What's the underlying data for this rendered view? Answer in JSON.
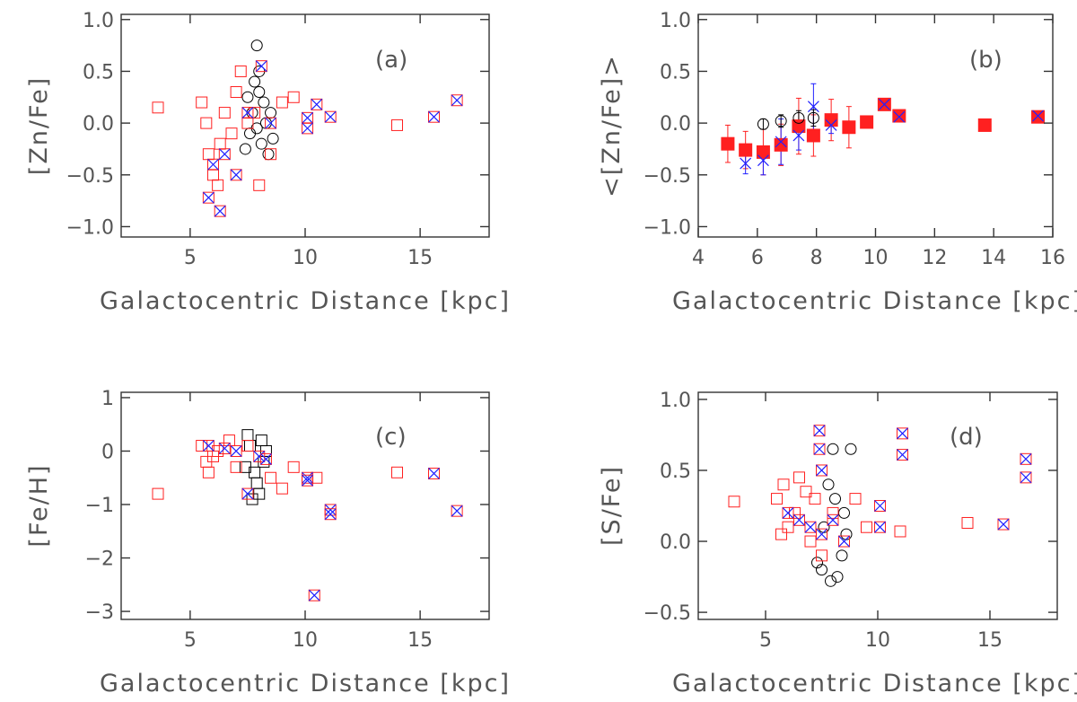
{
  "figure": "Zn/Fe, Fe/H and S/Fe versus galactocentric distance",
  "colors": {
    "red": "#ff2020",
    "blue": "#2020ff",
    "black": "#000000",
    "axis": "#333333",
    "text": "#555555"
  },
  "chart_data": [
    {
      "id": "a",
      "type": "scatter",
      "panel_label": "(a)",
      "xlabel": "Galactocentric Distance [kpc]",
      "ylabel": "[Zn/Fe]",
      "xlim": [
        2,
        18
      ],
      "ylim": [
        -1.1,
        1.05
      ],
      "xticks": [
        5,
        10,
        15
      ],
      "xtick_labels": [
        "5",
        "10",
        "15"
      ],
      "yticks": [
        -1.0,
        -0.5,
        0.0,
        0.5,
        1.0
      ],
      "ytick_labels": [
        "−1.0",
        "−0.5",
        "0.0",
        "0.5",
        "1.0"
      ],
      "series": [
        {
          "name": "black circles",
          "marker": "circle",
          "color": "#000000",
          "points": [
            [
              7.9,
              0.75
            ],
            [
              7.8,
              0.4
            ],
            [
              8.0,
              0.3
            ],
            [
              8.2,
              0.2
            ],
            [
              7.7,
              0.1
            ],
            [
              8.3,
              0.0
            ],
            [
              7.6,
              -0.1
            ],
            [
              8.1,
              -0.2
            ],
            [
              8.4,
              -0.3
            ],
            [
              7.9,
              -0.05
            ],
            [
              8.5,
              0.1
            ],
            [
              7.5,
              0.25
            ],
            [
              8.6,
              -0.15
            ],
            [
              7.4,
              -0.25
            ],
            [
              8.0,
              0.5
            ]
          ]
        },
        {
          "name": "red squares",
          "marker": "square",
          "color": "#ff2020",
          "points": [
            [
              3.6,
              0.15
            ],
            [
              5.5,
              0.2
            ],
            [
              5.8,
              -0.3
            ],
            [
              6.0,
              -0.5
            ],
            [
              6.3,
              -0.2
            ],
            [
              6.5,
              0.1
            ],
            [
              7.0,
              0.3
            ],
            [
              7.2,
              0.5
            ],
            [
              7.5,
              0.0
            ],
            [
              8.0,
              -0.6
            ],
            [
              8.5,
              -0.3
            ],
            [
              9.0,
              0.2
            ],
            [
              9.5,
              0.25
            ],
            [
              14.0,
              -0.02
            ],
            [
              6.8,
              -0.1
            ],
            [
              5.7,
              0.0
            ],
            [
              6.2,
              -0.6
            ],
            [
              7.8,
              0.1
            ]
          ]
        },
        {
          "name": "blue crosses in squares",
          "marker": "crossbox",
          "color": "#2020ff",
          "points": [
            [
              5.8,
              -0.72
            ],
            [
              6.3,
              -0.85
            ],
            [
              6.0,
              -0.4
            ],
            [
              6.5,
              -0.3
            ],
            [
              7.0,
              -0.5
            ],
            [
              8.1,
              0.55
            ],
            [
              10.1,
              0.05
            ],
            [
              10.1,
              -0.05
            ],
            [
              10.5,
              0.18
            ],
            [
              11.1,
              0.06
            ],
            [
              15.6,
              0.06
            ],
            [
              16.6,
              0.22
            ],
            [
              8.5,
              0.0
            ],
            [
              7.5,
              0.1
            ]
          ]
        }
      ]
    },
    {
      "id": "b",
      "type": "scatter",
      "panel_label": "(b)",
      "xlabel": "Galactocentric Distance [kpc]",
      "ylabel": "<[Zn/Fe]>",
      "xlim": [
        4,
        16
      ],
      "ylim": [
        -1.1,
        1.05
      ],
      "xticks": [
        4,
        6,
        8,
        10,
        12,
        14,
        16
      ],
      "xtick_labels": [
        "4",
        "6",
        "8",
        "10",
        "12",
        "14",
        "16"
      ],
      "yticks": [
        -1.0,
        -0.5,
        0.0,
        0.5,
        1.0
      ],
      "ytick_labels": [
        "−1.0",
        "−0.5",
        "0.0",
        "0.5",
        "1.0"
      ],
      "series": [
        {
          "name": "mean red filled squares",
          "marker": "filled-square",
          "color": "#ff2020",
          "points": [
            [
              5.0,
              -0.2,
              0.18
            ],
            [
              5.6,
              -0.26,
              0.18
            ],
            [
              6.2,
              -0.28,
              0.22
            ],
            [
              6.8,
              -0.21,
              0.2
            ],
            [
              7.4,
              -0.03,
              0.27
            ],
            [
              7.9,
              -0.12,
              0.2
            ],
            [
              8.5,
              0.03,
              0.2
            ],
            [
              9.1,
              -0.04,
              0.2
            ],
            [
              9.7,
              0.01,
              0
            ],
            [
              10.3,
              0.18,
              0
            ],
            [
              10.8,
              0.07,
              0
            ],
            [
              13.7,
              -0.02,
              0
            ],
            [
              15.5,
              0.06,
              0
            ]
          ]
        },
        {
          "name": "mean blue crosses",
          "marker": "x",
          "color": "#2020ff",
          "points": [
            [
              5.6,
              -0.39,
              0.1
            ],
            [
              6.2,
              -0.36,
              0.14
            ],
            [
              6.8,
              -0.18,
              0.22
            ],
            [
              7.4,
              -0.12,
              0.14
            ],
            [
              7.9,
              0.16,
              0.22
            ],
            [
              8.5,
              -0.02,
              0.08
            ],
            [
              10.3,
              0.18,
              0
            ],
            [
              10.8,
              0.06,
              0
            ],
            [
              15.5,
              0.07,
              0
            ]
          ]
        },
        {
          "name": "mean black circles",
          "marker": "circle",
          "color": "#000000",
          "points": [
            [
              6.2,
              -0.01,
              0.05
            ],
            [
              6.8,
              0.02,
              0.06
            ],
            [
              7.4,
              0.05,
              0.07
            ],
            [
              7.9,
              0.05,
              0.08
            ]
          ]
        }
      ]
    },
    {
      "id": "c",
      "type": "scatter",
      "panel_label": "(c)",
      "xlabel": "Galactocentric Distance [kpc]",
      "ylabel": "[Fe/H]",
      "xlim": [
        2,
        18
      ],
      "ylim": [
        -3.15,
        1.1
      ],
      "xticks": [
        5,
        10,
        15
      ],
      "xtick_labels": [
        "5",
        "10",
        "15"
      ],
      "yticks": [
        -3,
        -2,
        -1,
        0,
        1
      ],
      "ytick_labels": [
        "−3",
        "−2",
        "−1",
        "0",
        "1"
      ],
      "series": [
        {
          "name": "black squares",
          "marker": "square",
          "color": "#000000",
          "points": [
            [
              7.5,
              0.3
            ],
            [
              7.8,
              -0.4
            ],
            [
              8.0,
              -0.8
            ],
            [
              7.6,
              0.1
            ],
            [
              8.1,
              0.2
            ],
            [
              7.9,
              -0.6
            ],
            [
              8.2,
              -0.2
            ],
            [
              7.7,
              -0.9
            ],
            [
              8.3,
              0.0
            ],
            [
              7.4,
              -0.3
            ]
          ]
        },
        {
          "name": "red squares",
          "marker": "square",
          "color": "#ff2020",
          "points": [
            [
              3.6,
              -0.8
            ],
            [
              5.5,
              0.1
            ],
            [
              5.8,
              -0.4
            ],
            [
              6.2,
              0.0
            ],
            [
              6.7,
              0.2
            ],
            [
              7.0,
              -0.3
            ],
            [
              7.5,
              0.1
            ],
            [
              8.5,
              -0.5
            ],
            [
              9.0,
              -0.7
            ],
            [
              9.5,
              -0.3
            ],
            [
              10.5,
              -0.5
            ],
            [
              14.0,
              -0.4
            ],
            [
              6.0,
              -0.1
            ],
            [
              5.7,
              -0.2
            ]
          ]
        },
        {
          "name": "blue crosses in squares",
          "marker": "crossbox",
          "color": "#2020ff",
          "points": [
            [
              5.8,
              0.1
            ],
            [
              6.5,
              0.05
            ],
            [
              7.0,
              0.0
            ],
            [
              7.5,
              -0.8
            ],
            [
              8.0,
              -0.1
            ],
            [
              8.3,
              -0.15
            ],
            [
              10.1,
              -0.5
            ],
            [
              10.1,
              -0.55
            ],
            [
              11.1,
              -1.1
            ],
            [
              11.1,
              -1.18
            ],
            [
              15.6,
              -0.42
            ],
            [
              16.6,
              -1.12
            ],
            [
              10.4,
              -2.7
            ]
          ]
        }
      ]
    },
    {
      "id": "d",
      "type": "scatter",
      "panel_label": "(d)",
      "xlabel": "Galactocentric Distance [kpc]",
      "ylabel": "[S/Fe]",
      "xlim": [
        2,
        18
      ],
      "ylim": [
        -0.55,
        1.05
      ],
      "xticks": [
        5,
        10,
        15
      ],
      "xtick_labels": [
        "5",
        "10",
        "15"
      ],
      "yticks": [
        -0.5,
        0.0,
        0.5,
        1.0
      ],
      "ytick_labels": [
        "−0.5",
        "0.0",
        "0.5",
        "1.0"
      ],
      "series": [
        {
          "name": "black circles",
          "marker": "circle",
          "color": "#000000",
          "points": [
            [
              7.5,
              -0.2
            ],
            [
              7.8,
              0.4
            ],
            [
              8.0,
              0.65
            ],
            [
              8.2,
              -0.25
            ],
            [
              7.6,
              0.1
            ],
            [
              8.4,
              -0.1
            ],
            [
              8.6,
              0.05
            ],
            [
              8.8,
              0.65
            ],
            [
              7.3,
              -0.15
            ],
            [
              8.1,
              0.3
            ],
            [
              7.9,
              -0.28
            ],
            [
              8.5,
              0.2
            ]
          ]
        },
        {
          "name": "red squares",
          "marker": "square",
          "color": "#ff2020",
          "points": [
            [
              3.6,
              0.28
            ],
            [
              5.5,
              0.3
            ],
            [
              5.8,
              0.4
            ],
            [
              6.0,
              0.1
            ],
            [
              6.3,
              0.2
            ],
            [
              6.5,
              0.45
            ],
            [
              7.0,
              0.0
            ],
            [
              7.2,
              0.3
            ],
            [
              7.5,
              -0.1
            ],
            [
              8.0,
              0.2
            ],
            [
              9.0,
              0.3
            ],
            [
              9.5,
              0.1
            ],
            [
              11.0,
              0.07
            ],
            [
              14.0,
              0.13
            ],
            [
              5.7,
              0.05
            ],
            [
              6.8,
              0.35
            ]
          ]
        },
        {
          "name": "blue crosses in squares",
          "marker": "crossbox",
          "color": "#2020ff",
          "points": [
            [
              7.4,
              0.78
            ],
            [
              7.4,
              0.65
            ],
            [
              7.5,
              0.5
            ],
            [
              6.0,
              0.2
            ],
            [
              6.5,
              0.15
            ],
            [
              7.0,
              0.1
            ],
            [
              7.5,
              0.05
            ],
            [
              8.0,
              0.15
            ],
            [
              8.5,
              0.0
            ],
            [
              10.1,
              0.25
            ],
            [
              10.1,
              0.1
            ],
            [
              11.1,
              0.76
            ],
            [
              11.1,
              0.61
            ],
            [
              15.6,
              0.12
            ],
            [
              16.6,
              0.58
            ],
            [
              16.6,
              0.45
            ]
          ]
        }
      ]
    }
  ]
}
